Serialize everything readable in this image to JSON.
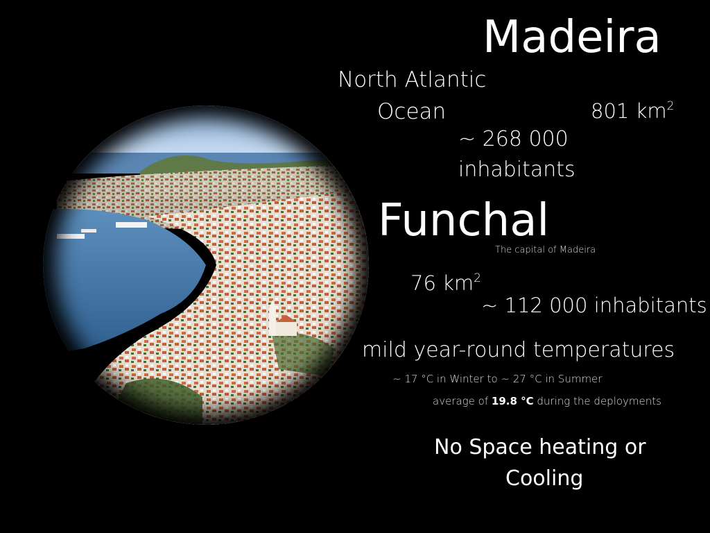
{
  "title": "Madeira",
  "ocean_line1": "North Atlantic",
  "ocean_line2": "Ocean",
  "madeira_area": "801 km",
  "area_unit_exponent": "2",
  "madeira_population_line1": "~ 268 000",
  "madeira_population_line2": "inhabitants",
  "capital_name": "Funchal",
  "capital_caption": "The capital of Madeira",
  "funchal_area": "76 km",
  "funchal_population": "~ 112 000 inhabitants",
  "climate_heading": "mild year-round temperatures",
  "temperature_range": "~ 17 °C in Winter to ~ 27 °C in Summer",
  "average_prefix": "average of ",
  "average_value": "19.8 °C",
  "average_suffix": " during the deployments",
  "heating_line1": "No Space heating or",
  "heating_line2": "Cooling",
  "colors": {
    "background": "#000000",
    "text": "#ffffff",
    "sea": "#4a7fb0",
    "sky": "#bcd4ee",
    "roofs": "#c8643c",
    "buildings": "#e8e2d6",
    "vegetation": "#4a6a30"
  }
}
